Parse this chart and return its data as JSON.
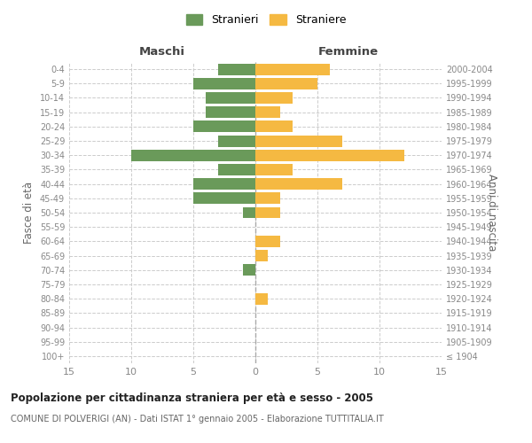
{
  "age_groups": [
    "100+",
    "95-99",
    "90-94",
    "85-89",
    "80-84",
    "75-79",
    "70-74",
    "65-69",
    "60-64",
    "55-59",
    "50-54",
    "45-49",
    "40-44",
    "35-39",
    "30-34",
    "25-29",
    "20-24",
    "15-19",
    "10-14",
    "5-9",
    "0-4"
  ],
  "birth_years": [
    "≤ 1904",
    "1905-1909",
    "1910-1914",
    "1915-1919",
    "1920-1924",
    "1925-1929",
    "1930-1934",
    "1935-1939",
    "1940-1944",
    "1945-1949",
    "1950-1954",
    "1955-1959",
    "1960-1964",
    "1965-1969",
    "1970-1974",
    "1975-1979",
    "1980-1984",
    "1985-1989",
    "1990-1994",
    "1995-1999",
    "2000-2004"
  ],
  "maschi": [
    0,
    0,
    0,
    0,
    0,
    0,
    1,
    0,
    0,
    0,
    1,
    5,
    5,
    3,
    10,
    3,
    5,
    4,
    4,
    5,
    3
  ],
  "femmine": [
    0,
    0,
    0,
    0,
    1,
    0,
    0,
    1,
    2,
    0,
    2,
    2,
    7,
    3,
    12,
    7,
    3,
    2,
    3,
    5,
    6
  ],
  "maschi_color": "#6a9a5a",
  "femmine_color": "#f5b942",
  "grid_color": "#cccccc",
  "title": "Popolazione per cittadinanza straniera per età e sesso - 2005",
  "subtitle": "COMUNE DI POLVERIGI (AN) - Dati ISTAT 1° gennaio 2005 - Elaborazione TUTTITALIA.IT",
  "ylabel_left": "Fasce di età",
  "ylabel_right": "Anni di nascita",
  "xlabel_left": "Maschi",
  "xlabel_top_right": "Femmine",
  "legend_maschi": "Stranieri",
  "legend_femmine": "Straniere",
  "xlim": 15,
  "bar_height": 0.8
}
